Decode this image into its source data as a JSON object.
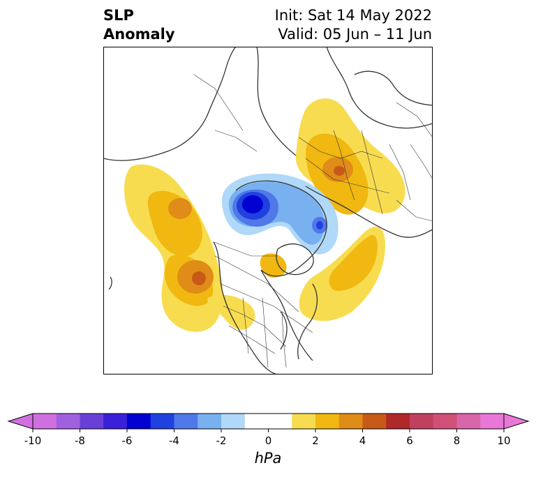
{
  "header": {
    "title_line1": "SLP",
    "title_line2": "Anomaly",
    "init_text": "Init: Sat 14 May 2022",
    "valid_text": "Valid: 05 Jun – 11 Jun"
  },
  "colorbar": {
    "ticks": [
      "-10",
      "-8",
      "-6",
      "-4",
      "-2",
      "0",
      "2",
      "4",
      "6",
      "8",
      "10"
    ],
    "unit": "hPa",
    "colors": [
      "#d070e0",
      "#a060e0",
      "#6840d8",
      "#3a20d8",
      "#0000d0",
      "#2040e0",
      "#5078e8",
      "#78b0f0",
      "#b0d8f8",
      "#ffffff",
      "#ffffff",
      "#f8dc50",
      "#f0b810",
      "#e08c18",
      "#c85a18",
      "#b02828",
      "#c04060",
      "#d05078",
      "#d866a8",
      "#e878d8"
    ],
    "min": -10,
    "max": 10,
    "step": 1
  },
  "map": {
    "projection": "polar stereographic",
    "features": [
      "coastlines",
      "country-borders",
      "state-borders"
    ]
  }
}
